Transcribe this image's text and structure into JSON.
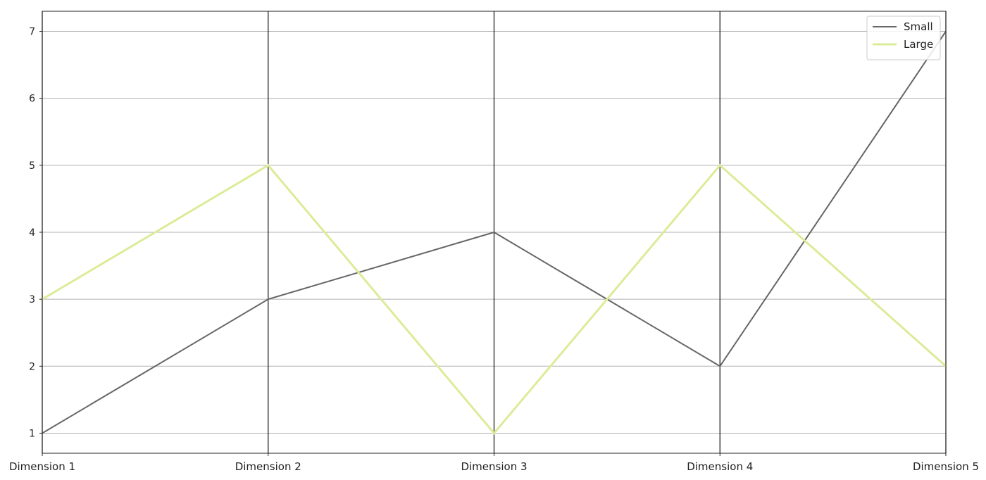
{
  "chart_data": {
    "type": "line",
    "subtype": "parallel-coordinates",
    "title": "",
    "xlabel": "",
    "ylabel": "",
    "categories": [
      "Dimension 1",
      "Dimension 2",
      "Dimension 3",
      "Dimension 4",
      "Dimension 5"
    ],
    "yticks": [
      1,
      2,
      3,
      4,
      5,
      6,
      7
    ],
    "ylim": [
      0.7,
      7.3
    ],
    "grid": true,
    "legend_position": "top-right",
    "series": [
      {
        "name": "Small",
        "values": [
          1,
          3,
          4,
          2,
          7
        ],
        "color": "#666666"
      },
      {
        "name": "Large",
        "values": [
          3,
          5,
          1,
          5,
          2
        ],
        "color": "#dbec98"
      }
    ]
  }
}
